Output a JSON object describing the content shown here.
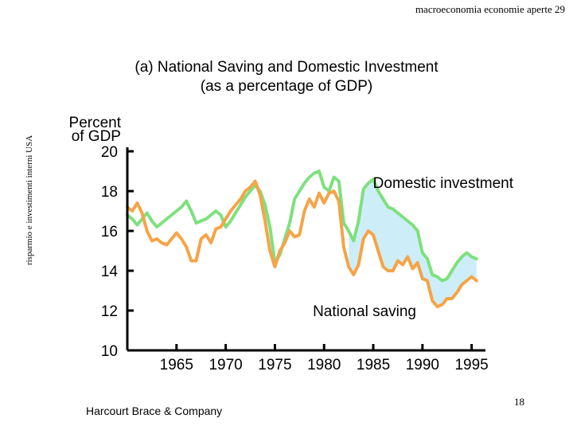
{
  "header": {
    "text": "macroeconomia economie aperte 29"
  },
  "side_label": "risparmio e investimenti interni USA",
  "publisher": "Harcourt Brace & Company",
  "page_number": "18",
  "colors": {
    "investment": "#7ee07e",
    "saving": "#f5a447",
    "gap_fill": "#cdeef8",
    "axis": "#000000"
  },
  "chart_data": {
    "type": "line",
    "title": "(a) National Saving and Domestic Investment",
    "subtitle": "(as a percentage of GDP)",
    "ylabel": "Percent of GDP",
    "ylabel_lines": [
      "Percent",
      "of GDP"
    ],
    "xlabel": "",
    "xlim": [
      1960,
      1996
    ],
    "ylim": [
      10,
      20
    ],
    "yticks": [
      20,
      18,
      16,
      14,
      12,
      10
    ],
    "xticks": [
      1965,
      1970,
      1975,
      1980,
      1985,
      1990,
      1995
    ],
    "annotations": [
      {
        "text": "Domestic investment",
        "series": "Domestic investment"
      },
      {
        "text": "National saving",
        "series": "National saving"
      }
    ],
    "series": [
      {
        "name": "Domestic investment",
        "x": [
          1960.0,
          1960.5,
          1961.0,
          1961.5,
          1962.0,
          1962.5,
          1963.0,
          1963.5,
          1964.0,
          1964.5,
          1965.0,
          1965.5,
          1966.0,
          1966.5,
          1967.0,
          1967.5,
          1968.0,
          1968.5,
          1969.0,
          1969.5,
          1970.0,
          1970.5,
          1971.0,
          1971.5,
          1972.0,
          1972.5,
          1973.0,
          1973.5,
          1974.0,
          1974.5,
          1975.0,
          1975.5,
          1976.0,
          1976.5,
          1977.0,
          1977.5,
          1978.0,
          1978.5,
          1979.0,
          1979.5,
          1980.0,
          1980.5,
          1981.0,
          1981.5,
          1982.0,
          1982.5,
          1983.0,
          1983.5,
          1984.0,
          1984.5,
          1985.0,
          1985.5,
          1986.0,
          1986.5,
          1987.0,
          1987.5,
          1988.0,
          1988.5,
          1989.0,
          1989.5,
          1990.0,
          1990.5,
          1991.0,
          1991.5,
          1992.0,
          1992.5,
          1993.0,
          1993.5,
          1994.0,
          1994.5,
          1995.0,
          1995.5
        ],
        "values": [
          16.8,
          16.6,
          16.3,
          16.6,
          16.9,
          16.5,
          16.2,
          16.4,
          16.6,
          16.8,
          17.0,
          17.2,
          17.5,
          17.0,
          16.4,
          16.5,
          16.6,
          16.8,
          17.0,
          16.8,
          16.2,
          16.5,
          16.9,
          17.3,
          17.7,
          18.0,
          18.3,
          18.0,
          17.3,
          16.2,
          14.4,
          14.8,
          15.6,
          16.4,
          17.6,
          18.0,
          18.4,
          18.7,
          18.9,
          19.0,
          18.2,
          18.0,
          18.7,
          18.5,
          16.4,
          16.0,
          15.5,
          16.5,
          18.1,
          18.4,
          18.6,
          18.0,
          17.6,
          17.2,
          17.1,
          16.9,
          16.7,
          16.5,
          16.3,
          16.0,
          14.9,
          14.6,
          13.8,
          13.7,
          13.5,
          13.6,
          14.0,
          14.4,
          14.7,
          14.9,
          14.7,
          14.6
        ]
      },
      {
        "name": "National saving",
        "x": [
          1960.0,
          1960.5,
          1961.0,
          1961.5,
          1962.0,
          1962.5,
          1963.0,
          1963.5,
          1964.0,
          1964.5,
          1965.0,
          1965.5,
          1966.0,
          1966.5,
          1967.0,
          1967.5,
          1968.0,
          1968.5,
          1969.0,
          1969.5,
          1970.0,
          1970.5,
          1971.0,
          1971.5,
          1972.0,
          1972.5,
          1973.0,
          1973.5,
          1974.0,
          1974.5,
          1975.0,
          1975.5,
          1976.0,
          1976.5,
          1977.0,
          1977.5,
          1978.0,
          1978.5,
          1979.0,
          1979.5,
          1980.0,
          1980.5,
          1981.0,
          1981.5,
          1982.0,
          1982.5,
          1983.0,
          1983.5,
          1984.0,
          1984.5,
          1985.0,
          1985.5,
          1986.0,
          1986.5,
          1987.0,
          1987.5,
          1988.0,
          1988.5,
          1989.0,
          1989.5,
          1990.0,
          1990.5,
          1991.0,
          1991.5,
          1992.0,
          1992.5,
          1993.0,
          1993.5,
          1994.0,
          1994.5,
          1995.0,
          1995.5
        ],
        "values": [
          17.2,
          17.0,
          17.4,
          16.9,
          16.0,
          15.5,
          15.6,
          15.4,
          15.3,
          15.6,
          15.9,
          15.6,
          15.2,
          14.5,
          14.5,
          15.6,
          15.8,
          15.4,
          16.1,
          16.2,
          16.6,
          17.0,
          17.3,
          17.6,
          18.0,
          18.2,
          18.5,
          17.8,
          16.5,
          15.0,
          14.2,
          15.0,
          15.4,
          16.0,
          15.7,
          15.8,
          17.0,
          17.6,
          17.2,
          17.9,
          17.4,
          17.9,
          18.0,
          17.5,
          15.2,
          14.2,
          13.8,
          14.3,
          15.6,
          16.0,
          15.8,
          15.0,
          14.2,
          14.0,
          14.0,
          14.5,
          14.3,
          14.7,
          14.1,
          14.4,
          13.6,
          13.5,
          12.5,
          12.2,
          12.3,
          12.6,
          12.6,
          12.9,
          13.3,
          13.5,
          13.7,
          13.5
        ]
      }
    ]
  }
}
